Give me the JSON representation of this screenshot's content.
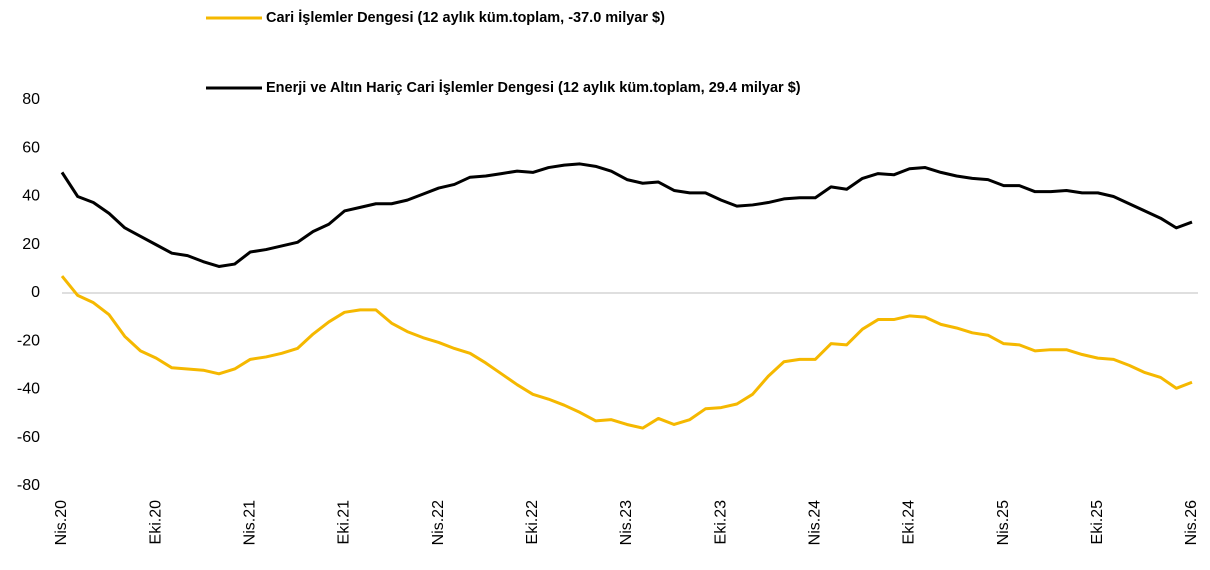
{
  "chart_data": {
    "type": "line",
    "categories": [
      "Nis.20",
      null,
      null,
      null,
      null,
      null,
      "Eki.20",
      null,
      null,
      null,
      null,
      null,
      "Nis.21",
      null,
      null,
      null,
      null,
      null,
      "Eki.21",
      null,
      null,
      null,
      null,
      null,
      "Nis.22",
      null,
      null,
      null,
      null,
      null,
      "Eki.22",
      null,
      null,
      null,
      null,
      null,
      "Nis.23",
      null,
      null,
      null,
      null,
      null,
      "Eki.23",
      null,
      null,
      null,
      null,
      null,
      "Nis.24",
      null,
      null,
      null,
      null,
      null,
      "Eki.24",
      null,
      null,
      null,
      null,
      null,
      "Nis.25",
      null,
      null,
      null,
      null,
      null,
      "Eki.25",
      null,
      null,
      null,
      null,
      null,
      "Nis.26"
    ],
    "series": [
      {
        "name": "Cari İşlemler Dengesi (12 aylık küm.toplam, -37.0 milyar $)",
        "color": "#f5b800",
        "values": [
          7,
          -1,
          -4,
          -9,
          -18,
          -24,
          -27,
          -31,
          -31.5,
          -32,
          -33.5,
          -31.5,
          -27.5,
          -26.5,
          -25,
          -23,
          -17,
          -12,
          -8,
          -7,
          -7,
          -12.5,
          -16,
          -18.5,
          -20.5,
          -23,
          -25,
          -29,
          -33.5,
          -38,
          -42,
          -44,
          -46.5,
          -49.5,
          -53,
          -52.5,
          -54.5,
          -56,
          -52,
          -54.5,
          -52.5,
          -48,
          -47.5,
          -46,
          -42,
          -34.5,
          -28.5,
          -27.5,
          -27.5,
          -21,
          -21.5,
          -15,
          -11,
          -11,
          -9.5,
          -10,
          -13,
          -14.5,
          -16.5,
          -17.5,
          -21,
          -21.5,
          -24,
          -23.5,
          -23.5,
          -25.5,
          -27,
          -27.5,
          -30,
          -33,
          -35,
          -39.5,
          -37
        ]
      },
      {
        "name": "Enerji ve Altın Hariç Cari İşlemler Dengesi (12 aylık küm.toplam, 29.4 milyar $)",
        "color": "#000000",
        "values": [
          50,
          40,
          37.5,
          33,
          27,
          23.5,
          20,
          16.5,
          15.5,
          13,
          11,
          12,
          17,
          18,
          19.5,
          21,
          25.5,
          28.5,
          34,
          35.5,
          37,
          37,
          38.5,
          41,
          43.5,
          45,
          48,
          48.5,
          49.5,
          50.5,
          50,
          52,
          53,
          53.5,
          52.5,
          50.5,
          47,
          45.5,
          46,
          42.5,
          41.5,
          41.5,
          38.5,
          36,
          36.5,
          37.5,
          39,
          39.5,
          39.5,
          44,
          43,
          47.5,
          49.5,
          49,
          51.5,
          52,
          50,
          48.5,
          47.5,
          47,
          44.5,
          44.5,
          42,
          42,
          42.5,
          41.5,
          41.5,
          40,
          37,
          34,
          31,
          27,
          29.4
        ]
      }
    ],
    "ylim": [
      -80,
      80
    ],
    "yticks": [
      -80,
      -60,
      -40,
      -20,
      0,
      20,
      40,
      60,
      80
    ],
    "grid": false
  }
}
